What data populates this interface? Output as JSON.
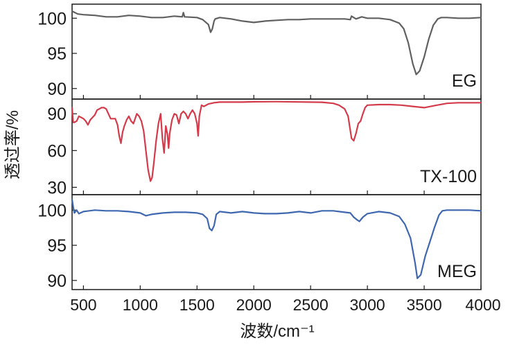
{
  "chart_data": {
    "type": "line",
    "xlabel": "波数/cm⁻¹",
    "ylabel": "透过率/%",
    "xlim": [
      400,
      4000
    ],
    "xticks": [
      500,
      1000,
      1500,
      2000,
      2500,
      3000,
      3500,
      4000
    ],
    "panels": [
      {
        "name": "EG",
        "label": "EG",
        "color": "#606060",
        "ylim": [
          88.5,
          102
        ],
        "yticks": [
          90,
          95,
          100
        ],
        "x": [
          400,
          450,
          500,
          600,
          700,
          800,
          900,
          1000,
          1100,
          1200,
          1300,
          1370,
          1380,
          1390,
          1500,
          1550,
          1600,
          1620,
          1635,
          1650,
          1660,
          1700,
          1800,
          1900,
          2000,
          2100,
          2200,
          2300,
          2400,
          2500,
          2600,
          2700,
          2800,
          2850,
          2860,
          2900,
          2950,
          3000,
          3100,
          3200,
          3280,
          3320,
          3360,
          3400,
          3430,
          3460,
          3500,
          3540,
          3580,
          3620,
          3650,
          3700,
          3800,
          3900,
          4000
        ],
        "y": [
          101,
          100.6,
          100.5,
          100.4,
          100.2,
          100.2,
          100.4,
          100.3,
          100.1,
          100.1,
          100.3,
          100.2,
          100.8,
          100.2,
          100.1,
          99.8,
          99.1,
          98,
          98.5,
          99.6,
          99.9,
          100.1,
          99.9,
          99.6,
          99.4,
          99.6,
          99.7,
          99.8,
          99.8,
          99.9,
          99.9,
          99.9,
          99.9,
          99.8,
          100.3,
          99.9,
          100.2,
          100,
          100,
          99.8,
          99.3,
          98.5,
          96.5,
          93.5,
          92,
          92.5,
          94.5,
          97,
          99,
          99.9,
          100.1,
          100.1,
          100,
          100,
          100.1
        ]
      },
      {
        "name": "TX-100",
        "label": "TX-100",
        "color": "#d43a4a",
        "ylim": [
          24,
          102
        ],
        "yticks": [
          30,
          60,
          90
        ],
        "x": [
          400,
          410,
          420,
          440,
          460,
          480,
          500,
          520,
          540,
          560,
          580,
          600,
          620,
          640,
          660,
          680,
          700,
          720,
          740,
          760,
          780,
          800,
          815,
          830,
          845,
          860,
          880,
          900,
          920,
          940,
          955,
          970,
          990,
          1010,
          1030,
          1050,
          1070,
          1090,
          1105,
          1120,
          1140,
          1160,
          1180,
          1195,
          1210,
          1225,
          1240,
          1250,
          1260,
          1280,
          1300,
          1320,
          1340,
          1360,
          1380,
          1400,
          1420,
          1440,
          1460,
          1480,
          1500,
          1510,
          1520,
          1540,
          1560,
          1600,
          1650,
          1700,
          1800,
          1900,
          2000,
          2200,
          2400,
          2600,
          2700,
          2750,
          2800,
          2830,
          2860,
          2880,
          2900,
          2920,
          2940,
          2960,
          2980,
          3000,
          3100,
          3200,
          3300,
          3400,
          3500,
          3600,
          3700,
          3800,
          3900,
          4000
        ],
        "y": [
          95,
          83,
          83,
          84,
          88,
          87,
          86,
          84,
          81,
          85,
          87,
          89,
          93,
          94,
          95,
          95,
          94,
          90,
          86,
          86,
          86,
          81,
          72,
          66,
          75,
          80,
          85,
          88,
          84,
          82,
          86,
          90,
          88,
          84,
          76,
          60,
          44,
          35,
          38,
          50,
          68,
          82,
          90,
          70,
          58,
          80,
          73,
          62,
          74,
          85,
          90,
          89,
          82,
          90,
          92,
          90,
          86,
          90,
          93,
          90,
          82,
          72,
          88,
          97,
          96,
          98,
          99,
          99.5,
          99.5,
          99.5,
          99.8,
          99.9,
          99.6,
          99.4,
          98.5,
          97,
          94,
          88,
          70,
          68,
          74,
          82,
          84,
          90,
          95,
          97,
          97.5,
          97.5,
          97,
          96,
          95,
          96.8,
          98.5,
          99,
          99,
          99
        ]
      },
      {
        "name": "MEG",
        "label": "MEG",
        "color": "#3e67b0",
        "ylim": [
          88.7,
          102.2
        ],
        "yticks": [
          90,
          95,
          100
        ],
        "x": [
          400,
          410,
          420,
          440,
          460,
          500,
          600,
          700,
          800,
          900,
          950,
          1000,
          1050,
          1100,
          1200,
          1300,
          1400,
          1500,
          1550,
          1590,
          1610,
          1630,
          1650,
          1670,
          1700,
          1800,
          1900,
          2000,
          2100,
          2200,
          2300,
          2400,
          2500,
          2600,
          2700,
          2800,
          2850,
          2880,
          2910,
          2930,
          2960,
          3000,
          3100,
          3200,
          3280,
          3330,
          3380,
          3420,
          3440,
          3470,
          3510,
          3550,
          3590,
          3630,
          3660,
          3700,
          3800,
          3900,
          4000
        ],
        "y": [
          101.5,
          100.5,
          99.6,
          100,
          99.5,
          99.8,
          100,
          99.9,
          99.9,
          99.8,
          99.7,
          99.6,
          99.2,
          99.4,
          99.6,
          99.7,
          99.7,
          99.6,
          99.4,
          98.8,
          97.4,
          97.1,
          97.8,
          99.4,
          99.8,
          99.6,
          99.8,
          99.6,
          99.5,
          99.5,
          99.6,
          99.8,
          99.6,
          99.9,
          99.9,
          99.7,
          99.6,
          99,
          98.6,
          98.4,
          99,
          99.5,
          99.8,
          99.6,
          99.1,
          98,
          96,
          92.5,
          90.3,
          90.8,
          93.5,
          95.5,
          97.5,
          99.3,
          99.9,
          100,
          100,
          100,
          99.9
        ]
      }
    ]
  }
}
